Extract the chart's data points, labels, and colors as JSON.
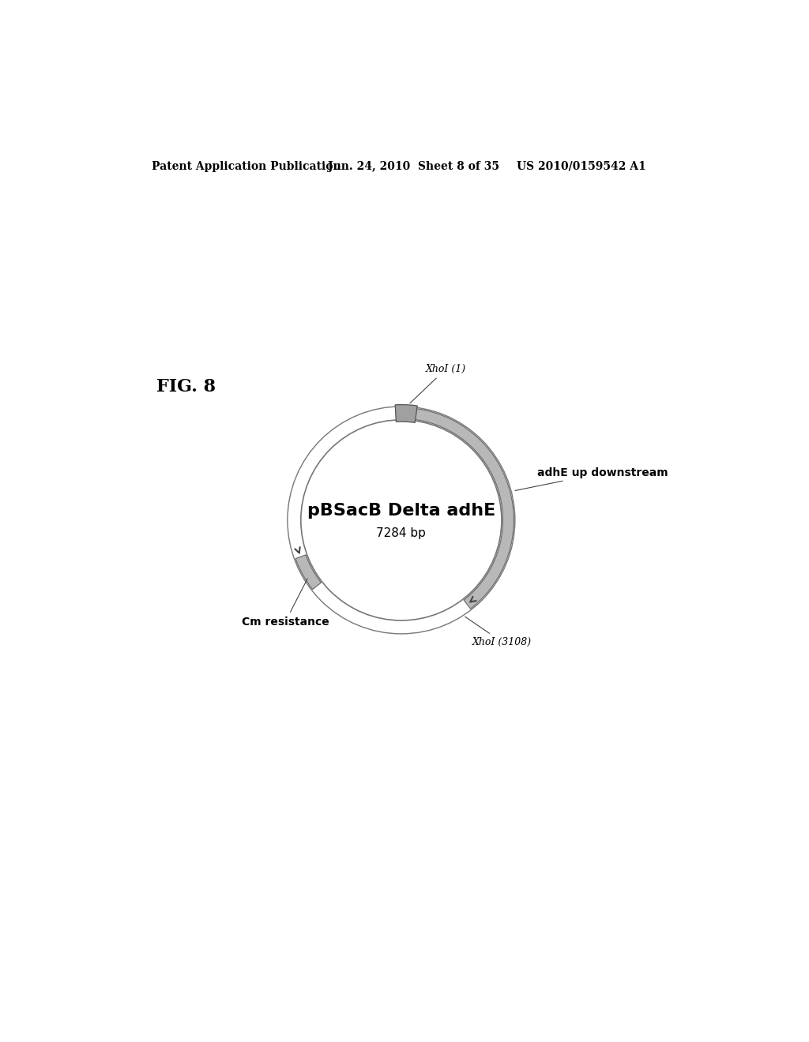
{
  "header_left": "Patent Application Publication",
  "header_mid": "Jun. 24, 2010  Sheet 8 of 35",
  "header_right": "US 2010/0159542 A1",
  "fig_label": "FIG. 8",
  "plasmid_name": "pBSacB Delta adhE",
  "plasmid_bp": "7284 bp",
  "label_xhoi1": "XhoI (1)",
  "label_adhe": "adhE up downstream",
  "label_xhoi2": "XhoI (3108)",
  "label_cm": "Cm resistance",
  "bg_color": "#ffffff",
  "text_color": "#000000",
  "circle_color": "#666666",
  "segment_color": "#aaaaaa"
}
